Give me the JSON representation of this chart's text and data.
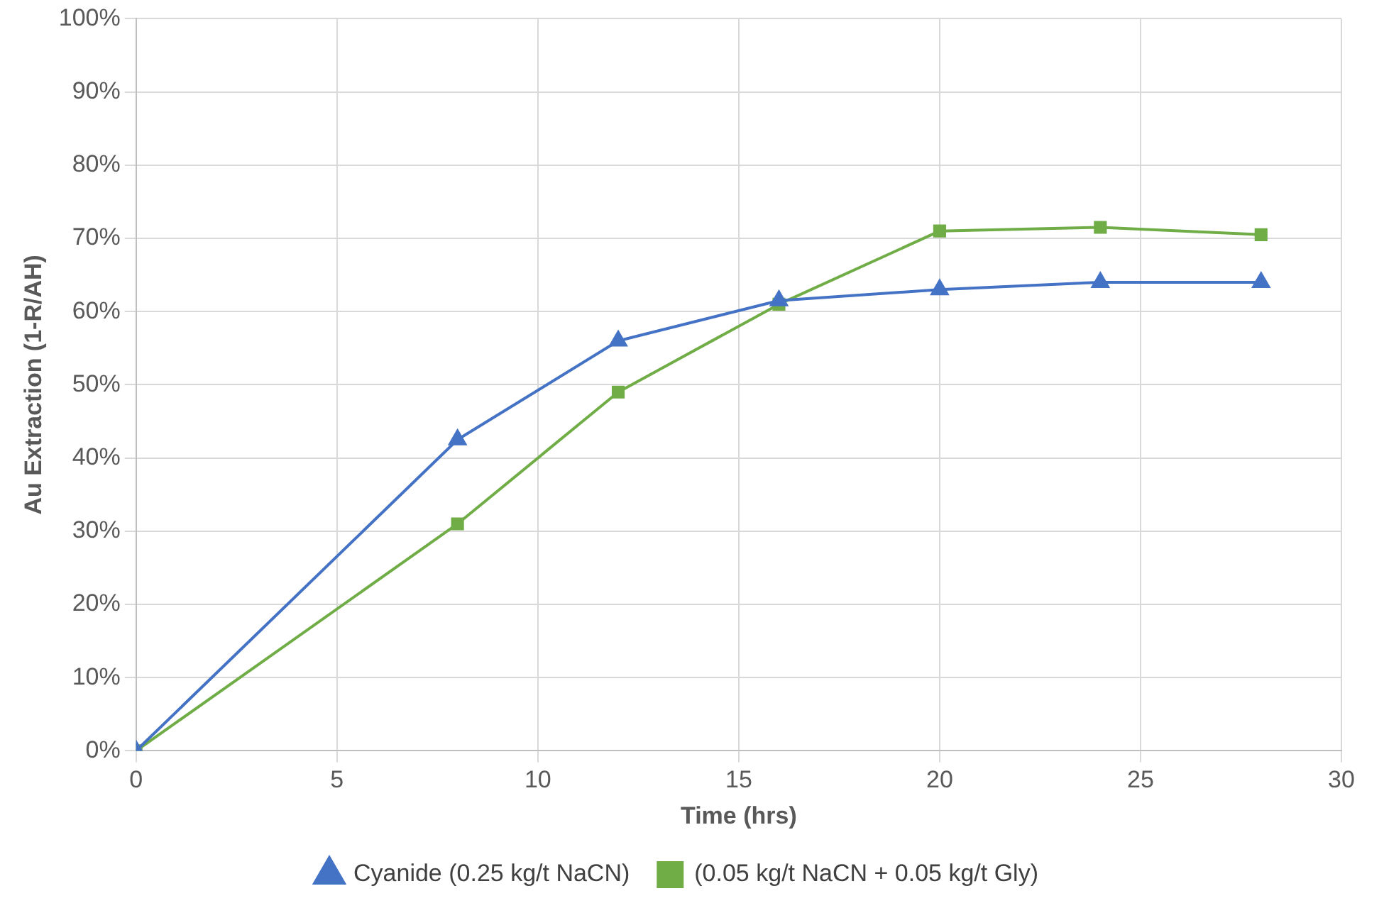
{
  "chart_data": {
    "type": "line",
    "xlabel": "Time (hrs)",
    "ylabel": "Au Extraction (1-R/AH)",
    "series": [
      {
        "name": "(0.05 kg/t NaCN + 0.05 kg/t Gly)",
        "color": "#70ad47",
        "marker": "square",
        "x": [
          0,
          8,
          12,
          16,
          20,
          24,
          28
        ],
        "values": [
          0,
          31,
          49,
          61,
          71,
          71.5,
          70.5
        ]
      },
      {
        "name": "Cyanide (0.25 kg/t NaCN)",
        "color": "#4472c4",
        "marker": "triangle",
        "x": [
          0,
          8,
          12,
          16,
          20,
          24,
          28
        ],
        "values": [
          0,
          42.5,
          56,
          61.5,
          63,
          64,
          64
        ]
      }
    ],
    "xlim": [
      0,
      30
    ],
    "xticks": [
      0,
      5,
      10,
      15,
      20,
      25,
      30
    ],
    "ylim": [
      0,
      100
    ],
    "yticks": [
      {
        "value": 0,
        "label": "0%"
      },
      {
        "value": 10,
        "label": "10%"
      },
      {
        "value": 20,
        "label": "20%"
      },
      {
        "value": 30,
        "label": "30%"
      },
      {
        "value": 40,
        "label": "40%"
      },
      {
        "value": 50,
        "label": "50%"
      },
      {
        "value": 60,
        "label": "60%"
      },
      {
        "value": 70,
        "label": "70%"
      },
      {
        "value": 80,
        "label": "80%"
      },
      {
        "value": 90,
        "label": "90%"
      },
      {
        "value": 100,
        "label": "100%"
      }
    ],
    "grid": true,
    "legend": "bottom",
    "line_style": "solid"
  }
}
